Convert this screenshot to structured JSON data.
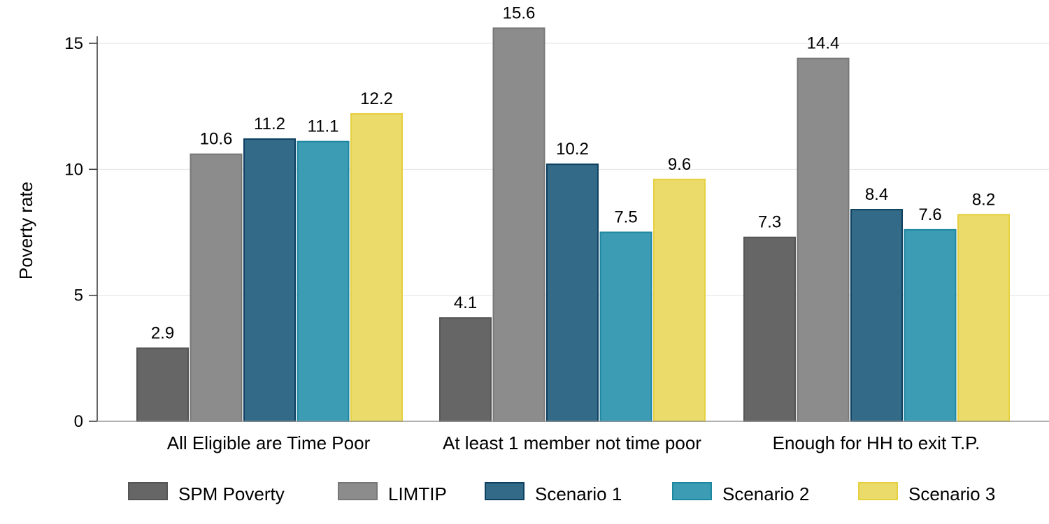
{
  "chart_data": {
    "type": "bar",
    "title": "",
    "xlabel": "",
    "ylabel": "Poverty rate",
    "ylim": [
      0,
      16
    ],
    "yticks": [
      0,
      5,
      10,
      15
    ],
    "grid": true,
    "legend_position": "bottom",
    "categories": [
      "All Eligible are Time Poor",
      "At least 1 member not time poor",
      "Enough for HH to exit T.P."
    ],
    "series": [
      {
        "name": "SPM Poverty",
        "values": [
          2.9,
          4.1,
          7.3
        ],
        "color": "#666666",
        "border": "#555555"
      },
      {
        "name": "LIMTIP",
        "values": [
          10.6,
          15.6,
          14.4
        ],
        "color": "#8c8c8c",
        "border": "#777777"
      },
      {
        "name": "Scenario 1",
        "values": [
          11.2,
          10.2,
          8.4
        ],
        "color": "#336a87",
        "border": "#0e4060"
      },
      {
        "name": "Scenario 2",
        "values": [
          11.1,
          7.5,
          7.6
        ],
        "color": "#3c9cb4",
        "border": "#1e87a0"
      },
      {
        "name": "Scenario 3",
        "values": [
          12.2,
          9.6,
          8.2
        ],
        "color": "#ebdb6b",
        "border": "#e6d040"
      }
    ],
    "data_labels": [
      [
        "2.9",
        "4.1",
        "7.3"
      ],
      [
        "10.6",
        "15.6",
        "14.4"
      ],
      [
        "11.2",
        "10.2",
        "8.4"
      ],
      [
        "11.1",
        "7.5",
        "7.6"
      ],
      [
        "12.2",
        "9.6",
        "8.2"
      ]
    ]
  }
}
